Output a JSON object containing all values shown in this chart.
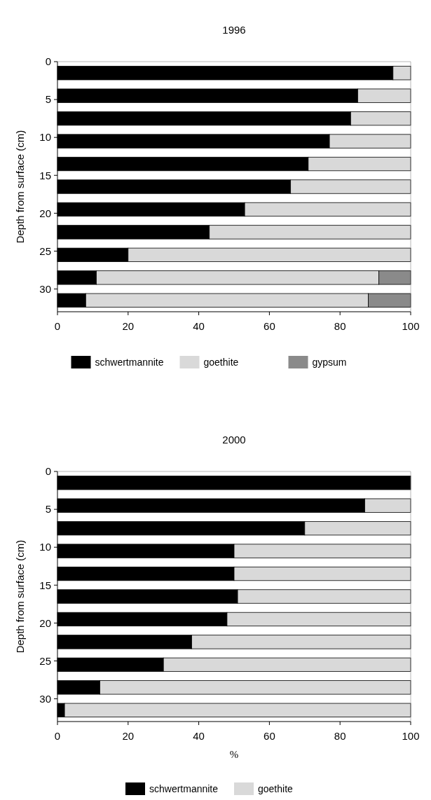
{
  "chart_data": [
    {
      "type": "bar",
      "title": "1996",
      "orientation": "horizontal",
      "stacked": true,
      "ylabel": "Depth from surface (cm)",
      "x": [
        1.5,
        4.5,
        7.5,
        10.5,
        13.5,
        16.5,
        19.5,
        22.5,
        25.5,
        28.5,
        31.5
      ],
      "series": [
        {
          "name": "schwertmannite",
          "color": "#000000",
          "values": [
            95,
            85,
            83,
            77,
            71,
            66,
            53,
            43,
            20,
            11,
            8
          ]
        },
        {
          "name": "goethite",
          "color": "#d9d9d9",
          "values": [
            5,
            15,
            17,
            23,
            29,
            34,
            47,
            57,
            80,
            80,
            80
          ]
        },
        {
          "name": "gypsum",
          "color": "#8a8a8a",
          "values": [
            0,
            0,
            0,
            0,
            0,
            0,
            0,
            0,
            0,
            9,
            12
          ]
        }
      ],
      "xlim": [
        0,
        100
      ],
      "xticks": [
        0,
        20,
        40,
        60,
        80,
        100
      ],
      "ylim": [
        33,
        0
      ],
      "yticks": [
        0,
        5,
        10,
        15,
        20,
        25,
        30
      ],
      "grid": false,
      "legend": "bottom"
    },
    {
      "type": "bar",
      "title": "2000",
      "orientation": "horizontal",
      "stacked": true,
      "ylabel": "Depth from surface (cm)",
      "xlabel": "%",
      "x": [
        1.5,
        4.5,
        7.5,
        10.5,
        13.5,
        16.5,
        19.5,
        22.5,
        25.5,
        28.5,
        31.5
      ],
      "series": [
        {
          "name": "schwertmannite",
          "color": "#000000",
          "values": [
            100,
            87,
            70,
            50,
            50,
            51,
            48,
            38,
            30,
            12,
            2
          ]
        },
        {
          "name": "goethite",
          "color": "#d9d9d9",
          "values": [
            0,
            13,
            30,
            50,
            50,
            49,
            52,
            62,
            70,
            88,
            98
          ]
        }
      ],
      "xlim": [
        0,
        100
      ],
      "xticks": [
        0,
        20,
        40,
        60,
        80,
        100
      ],
      "ylim": [
        33,
        0
      ],
      "yticks": [
        0,
        5,
        10,
        15,
        20,
        25,
        30
      ],
      "grid": false,
      "legend": "bottom"
    }
  ]
}
